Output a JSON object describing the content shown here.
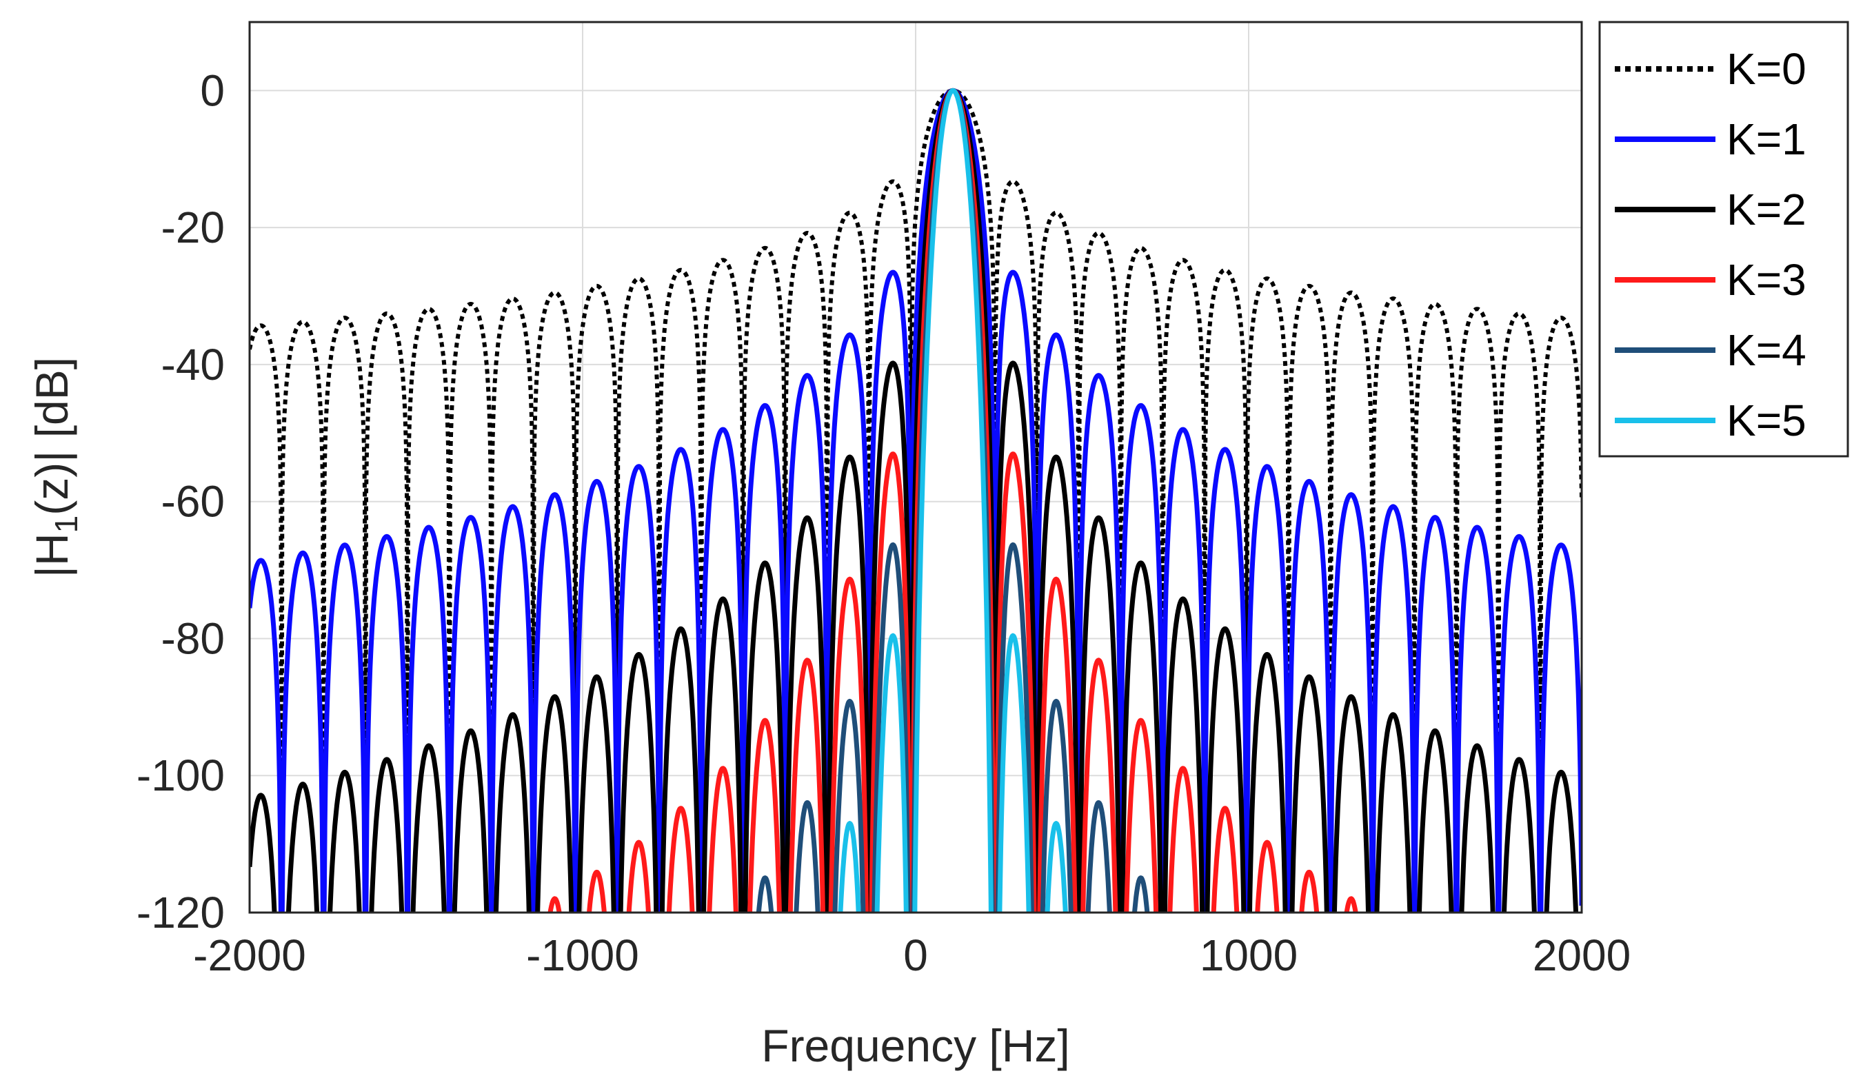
{
  "chart_data": {
    "type": "line",
    "xlabel": "Frequency [Hz]",
    "ylabel": {
      "prefix": "|H",
      "subscript": "1",
      "suffix": "(z)| [dB]"
    },
    "xlim": [
      -2000,
      2000
    ],
    "ylim": [
      -120,
      10
    ],
    "xticks": [
      -2000,
      -1000,
      0,
      1000,
      2000
    ],
    "xtick_labels": [
      "-2000",
      "-1000",
      "0",
      "1000",
      "2000"
    ],
    "yticks": [
      0,
      -20,
      -40,
      -60,
      -80,
      -100,
      -120
    ],
    "ytick_labels": [
      "0",
      "-20",
      "-40",
      "-60",
      "-80",
      "-100",
      "-120"
    ],
    "grid": true,
    "legend_position": "outside-right-top",
    "center_frequency": 112,
    "null_spacing": 126,
    "series": [
      {
        "name": "K=0",
        "color": "#000000",
        "style": "dotted",
        "order": 0
      },
      {
        "name": "K=1",
        "color": "#0a0aff",
        "style": "solid",
        "order": 1
      },
      {
        "name": "K=2",
        "color": "#000000",
        "style": "solid",
        "order": 2
      },
      {
        "name": "K=3",
        "color": "#ff1a1a",
        "style": "solid",
        "order": 3
      },
      {
        "name": "K=4",
        "color": "#1f4e79",
        "style": "solid",
        "order": 4
      },
      {
        "name": "K=5",
        "color": "#19c0ea",
        "style": "solid",
        "order": 5
      }
    ]
  }
}
